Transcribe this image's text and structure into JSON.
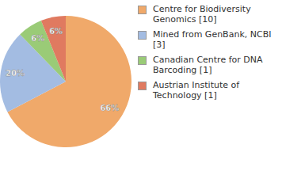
{
  "chart_data": {
    "type": "pie",
    "categories": [
      "Centre for Biodiversity Genomics [10]",
      "Mined from GenBank, NCBI [3]",
      "Canadian Centre for DNA Barcoding [1]",
      "Austrian Institute of Technology [1]"
    ],
    "values": [
      66,
      20,
      6,
      6
    ],
    "value_labels": [
      "66%",
      "20%",
      "6%",
      "6%"
    ],
    "colors": [
      "#f0a96a",
      "#a3bce2",
      "#9acb77",
      "#e07a60"
    ],
    "data_labels": true,
    "legend": "upper right"
  }
}
